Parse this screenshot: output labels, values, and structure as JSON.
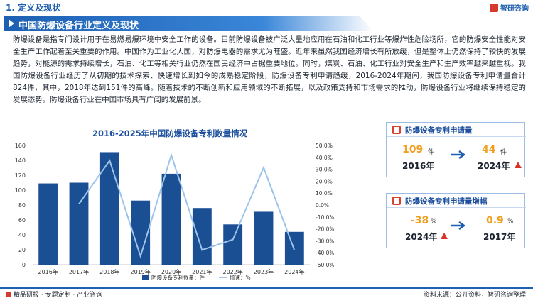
{
  "header": {
    "section_title": "1. 定义及现状",
    "brand_name": "智研咨询"
  },
  "banner": {
    "title": "中国防爆设备行业定义及现状"
  },
  "paragraph": "防爆设备是指专门设计用于在易燃易爆环境中安全工作的设备。目前防爆设备被广泛大量地应用在石油和化工行业等爆炸性危险场所，它的防爆安全性能对安全生产工作起着至关重要的作用。中国作为工业化大国，对防爆电器的需求尤为旺盛。近年来虽然我国经济增长有所放缓，但是整体上仍然保持了较快的发展趋势，对能源的需求持续增长，石油、化工等相关行业仍然在国民经济中占据重要地位。同时，煤炭、石油、化工行业对安全生产和生产效率越来越重视。我国防爆设备行业经历了从初期的技术探索、快速增长到如今的成熟稳定阶段，防爆设备专利申请趋缓，2016-2024年期间，我国防爆设备专利申请量合计824件，其中，2018年达到151件的高峰。随着技术的不断创新和应用领域的不断拓展，以及政策支持和市场需求的推动，防爆设备行业将继续保持稳定的发展态势。防爆设备行业在中国市场具有广阔的发展前景。",
  "chart_data": {
    "type": "bar",
    "title": "2016-2025年中国防爆设备专利数量情况",
    "categories": [
      "2016年",
      "2017年",
      "2018年",
      "2019年",
      "2020年",
      "2021年",
      "2022年",
      "2023年",
      "2024年"
    ],
    "series": [
      {
        "name": "防爆设备专利数量：件",
        "type": "bar",
        "axis": "left",
        "color": "#1b4f93",
        "values": [
          109,
          110,
          151,
          86,
          122,
          76,
          54,
          71,
          44
        ]
      },
      {
        "name": "增速：%",
        "type": "line",
        "axis": "right",
        "color": "#9dc3ea",
        "values": [
          null,
          0.9,
          37.3,
          -43.0,
          41.9,
          -37.7,
          -28.9,
          31.5,
          -38.0
        ]
      }
    ],
    "y_left": {
      "min": 0,
      "max": 160,
      "ticks": [
        "0",
        "20",
        "40",
        "60",
        "80",
        "100",
        "120",
        "140",
        "160"
      ]
    },
    "y_right": {
      "min": -50,
      "max": 50,
      "ticks": [
        "-50.0%",
        "-40.0%",
        "-30.0%",
        "-20.0%",
        "-10.0%",
        "0.0%",
        "10.0%",
        "20.0%",
        "30.0%",
        "40.0%",
        "50.0%"
      ]
    },
    "legend_position": "bottom",
    "grid": false
  },
  "card_count": {
    "title": "防爆设备专利申请量",
    "left_value": "109",
    "left_unit": "件",
    "left_year": "2016年",
    "right_value": "44",
    "right_unit": "件",
    "right_year": "2024年"
  },
  "card_growth": {
    "title": "防爆设备专利申请量增幅",
    "left_value": "-38",
    "left_unit": "%",
    "left_year": "2024年",
    "right_value": "0.9",
    "right_unit": "%",
    "right_year": "2017年"
  },
  "footer": {
    "left_text": "精品研报 · 专题定制 · 产业咨询",
    "right_text": "资料来源：公开资料，智研咨询整理"
  }
}
